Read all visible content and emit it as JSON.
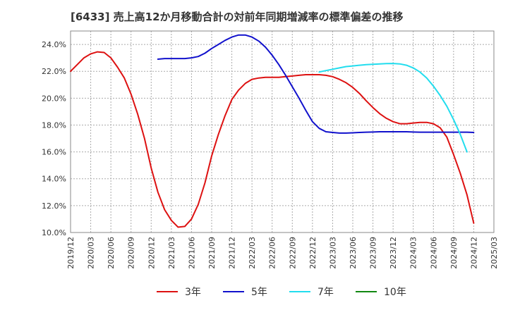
{
  "chart_data": {
    "type": "line",
    "title": "[6433]  売上高12か月移動合計の対前年同期増減率の標準偏差の推移",
    "xlabel": "",
    "ylabel": "",
    "ylim": [
      10.0,
      25.0
    ],
    "grid": true,
    "legend_position": "bottom",
    "x_ticks": [
      "2019/12",
      "2020/03",
      "2020/06",
      "2020/09",
      "2020/12",
      "2021/03",
      "2021/06",
      "2021/09",
      "2021/12",
      "2022/03",
      "2022/06",
      "2022/09",
      "2022/12",
      "2023/03",
      "2023/06",
      "2023/09",
      "2023/12",
      "2024/03",
      "2024/06",
      "2024/09",
      "2024/12",
      "2025/03"
    ],
    "y_ticks": [
      "10.0%",
      "12.0%",
      "14.0%",
      "16.0%",
      "18.0%",
      "20.0%",
      "22.0%",
      "24.0%"
    ],
    "y_tick_values": [
      10,
      12,
      14,
      16,
      18,
      20,
      22,
      24
    ],
    "series": [
      {
        "name": "3年",
        "color": "#dd1111",
        "points": [
          [
            "2019/12",
            22.0
          ],
          [
            "2020/01",
            22.5
          ],
          [
            "2020/02",
            23.0
          ],
          [
            "2020/03",
            23.3
          ],
          [
            "2020/04",
            23.45
          ],
          [
            "2020/05",
            23.4
          ],
          [
            "2020/06",
            23.0
          ],
          [
            "2020/07",
            22.3
          ],
          [
            "2020/08",
            21.5
          ],
          [
            "2020/09",
            20.3
          ],
          [
            "2020/10",
            18.8
          ],
          [
            "2020/11",
            17.0
          ],
          [
            "2020/12",
            14.8
          ],
          [
            "2021/01",
            13.0
          ],
          [
            "2021/02",
            11.7
          ],
          [
            "2021/03",
            10.9
          ],
          [
            "2021/04",
            10.4
          ],
          [
            "2021/05",
            10.45
          ],
          [
            "2021/06",
            11.0
          ],
          [
            "2021/07",
            12.1
          ],
          [
            "2021/08",
            13.7
          ],
          [
            "2021/09",
            15.7
          ],
          [
            "2021/10",
            17.3
          ],
          [
            "2021/11",
            18.7
          ],
          [
            "2021/12",
            19.9
          ],
          [
            "2022/01",
            20.6
          ],
          [
            "2022/02",
            21.1
          ],
          [
            "2022/03",
            21.4
          ],
          [
            "2022/04",
            21.5
          ],
          [
            "2022/05",
            21.55
          ],
          [
            "2022/06",
            21.55
          ],
          [
            "2022/07",
            21.55
          ],
          [
            "2022/08",
            21.6
          ],
          [
            "2022/09",
            21.65
          ],
          [
            "2022/10",
            21.7
          ],
          [
            "2022/11",
            21.75
          ],
          [
            "2022/12",
            21.75
          ],
          [
            "2023/01",
            21.75
          ],
          [
            "2023/02",
            21.7
          ],
          [
            "2023/03",
            21.6
          ],
          [
            "2023/04",
            21.4
          ],
          [
            "2023/05",
            21.15
          ],
          [
            "2023/06",
            20.8
          ],
          [
            "2023/07",
            20.35
          ],
          [
            "2023/08",
            19.8
          ],
          [
            "2023/09",
            19.3
          ],
          [
            "2023/10",
            18.85
          ],
          [
            "2023/11",
            18.5
          ],
          [
            "2023/12",
            18.25
          ],
          [
            "2024/01",
            18.1
          ],
          [
            "2024/02",
            18.1
          ],
          [
            "2024/03",
            18.15
          ],
          [
            "2024/04",
            18.2
          ],
          [
            "2024/05",
            18.2
          ],
          [
            "2024/06",
            18.1
          ],
          [
            "2024/07",
            17.8
          ],
          [
            "2024/08",
            17.1
          ],
          [
            "2024/09",
            15.8
          ],
          [
            "2024/10",
            14.4
          ],
          [
            "2024/11",
            12.8
          ],
          [
            "2024/12",
            10.7
          ]
        ]
      },
      {
        "name": "5年",
        "color": "#1111cc",
        "points": [
          [
            "2021/01",
            22.9
          ],
          [
            "2021/02",
            22.95
          ],
          [
            "2021/03",
            22.95
          ],
          [
            "2021/04",
            22.95
          ],
          [
            "2021/05",
            22.95
          ],
          [
            "2021/06",
            23.0
          ],
          [
            "2021/07",
            23.1
          ],
          [
            "2021/08",
            23.35
          ],
          [
            "2021/09",
            23.7
          ],
          [
            "2021/10",
            24.0
          ],
          [
            "2021/11",
            24.3
          ],
          [
            "2021/12",
            24.55
          ],
          [
            "2022/01",
            24.7
          ],
          [
            "2022/02",
            24.7
          ],
          [
            "2022/03",
            24.55
          ],
          [
            "2022/04",
            24.25
          ],
          [
            "2022/05",
            23.8
          ],
          [
            "2022/06",
            23.2
          ],
          [
            "2022/07",
            22.5
          ],
          [
            "2022/08",
            21.7
          ],
          [
            "2022/09",
            20.85
          ],
          [
            "2022/10",
            20.0
          ],
          [
            "2022/11",
            19.1
          ],
          [
            "2022/12",
            18.25
          ],
          [
            "2023/01",
            17.75
          ],
          [
            "2023/02",
            17.5
          ],
          [
            "2023/03",
            17.45
          ],
          [
            "2023/04",
            17.4
          ],
          [
            "2023/05",
            17.4
          ],
          [
            "2023/06",
            17.42
          ],
          [
            "2023/07",
            17.45
          ],
          [
            "2023/08",
            17.47
          ],
          [
            "2023/09",
            17.48
          ],
          [
            "2023/10",
            17.5
          ],
          [
            "2023/11",
            17.5
          ],
          [
            "2023/12",
            17.5
          ],
          [
            "2024/01",
            17.5
          ],
          [
            "2024/02",
            17.5
          ],
          [
            "2024/03",
            17.48
          ],
          [
            "2024/04",
            17.47
          ],
          [
            "2024/05",
            17.47
          ],
          [
            "2024/06",
            17.47
          ],
          [
            "2024/07",
            17.47
          ],
          [
            "2024/08",
            17.47
          ],
          [
            "2024/09",
            17.47
          ],
          [
            "2024/10",
            17.47
          ],
          [
            "2024/11",
            17.47
          ],
          [
            "2024/12",
            17.45
          ]
        ]
      },
      {
        "name": "7年",
        "color": "#22ddee",
        "points": [
          [
            "2023/01",
            21.95
          ],
          [
            "2023/02",
            22.05
          ],
          [
            "2023/03",
            22.15
          ],
          [
            "2023/04",
            22.25
          ],
          [
            "2023/05",
            22.35
          ],
          [
            "2023/06",
            22.4
          ],
          [
            "2023/07",
            22.45
          ],
          [
            "2023/08",
            22.5
          ],
          [
            "2023/09",
            22.52
          ],
          [
            "2023/10",
            22.55
          ],
          [
            "2023/11",
            22.57
          ],
          [
            "2023/12",
            22.58
          ],
          [
            "2024/01",
            22.55
          ],
          [
            "2024/02",
            22.45
          ],
          [
            "2024/03",
            22.25
          ],
          [
            "2024/04",
            21.95
          ],
          [
            "2024/05",
            21.5
          ],
          [
            "2024/06",
            20.9
          ],
          [
            "2024/07",
            20.2
          ],
          [
            "2024/08",
            19.4
          ],
          [
            "2024/09",
            18.4
          ],
          [
            "2024/10",
            17.3
          ],
          [
            "2024/11",
            16.0
          ]
        ]
      },
      {
        "name": "10年",
        "color": "#118811",
        "points": []
      }
    ]
  }
}
